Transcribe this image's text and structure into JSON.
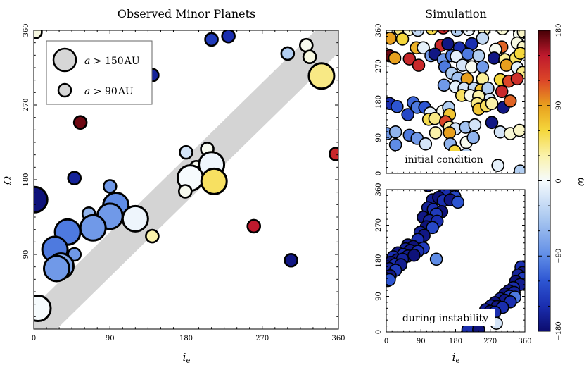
{
  "chart_data": [
    {
      "type": "scatter",
      "title": "Observed Minor Planets",
      "xlabel": "i",
      "xlabel_sub": "e",
      "ylabel": "Ω",
      "xlim": [
        0,
        360
      ],
      "ylim": [
        0,
        360
      ],
      "xticks": [
        0,
        90,
        180,
        270,
        360
      ],
      "yticks": [
        90,
        180,
        270,
        360
      ],
      "band": "diagonal Ω ≈ i_e",
      "legend": {
        "entries": [
          {
            "prefix": "a > ",
            "value": "150",
            "unit": "AU",
            "size": "large"
          },
          {
            "prefix": "a > ",
            "value": "90",
            "unit": "AU",
            "size": "small"
          }
        ]
      },
      "points": [
        {
          "x": 2,
          "y": 358,
          "w": 10,
          "size": "small"
        },
        {
          "x": 210,
          "y": 349,
          "w": -140,
          "size": "small"
        },
        {
          "x": 230,
          "y": 353,
          "w": -150,
          "size": "small"
        },
        {
          "x": 140,
          "y": 306,
          "w": -160,
          "size": "small"
        },
        {
          "x": 300,
          "y": 332,
          "w": -40,
          "size": "small"
        },
        {
          "x": 322,
          "y": 342,
          "w": 5,
          "size": "small"
        },
        {
          "x": 326,
          "y": 328,
          "w": 10,
          "size": "small"
        },
        {
          "x": 340,
          "y": 305,
          "w": 40,
          "size": "large"
        },
        {
          "x": 55,
          "y": 249,
          "w": 170,
          "size": "small"
        },
        {
          "x": 357,
          "y": 211,
          "w": 140,
          "size": "small"
        },
        {
          "x": 180,
          "y": 213,
          "w": -20,
          "size": "small"
        },
        {
          "x": 205,
          "y": 217,
          "w": 5,
          "size": "small"
        },
        {
          "x": 192,
          "y": 195,
          "w": 5,
          "size": "small"
        },
        {
          "x": 210,
          "y": 198,
          "w": -5,
          "size": "large"
        },
        {
          "x": 185,
          "y": 182,
          "w": 0,
          "size": "large"
        },
        {
          "x": 213,
          "y": 178,
          "w": 50,
          "size": "large"
        },
        {
          "x": 179,
          "y": 166,
          "w": 5,
          "size": "small"
        },
        {
          "x": 48,
          "y": 182,
          "w": -160,
          "size": "small"
        },
        {
          "x": 1,
          "y": 156,
          "w": -175,
          "size": "large"
        },
        {
          "x": 90,
          "y": 172,
          "w": -80,
          "size": "small"
        },
        {
          "x": 65,
          "y": 139,
          "w": -60,
          "size": "small"
        },
        {
          "x": 97,
          "y": 149,
          "w": -90,
          "size": "large"
        },
        {
          "x": 90,
          "y": 136,
          "w": -80,
          "size": "large"
        },
        {
          "x": 120,
          "y": 133,
          "w": -5,
          "size": "large"
        },
        {
          "x": 70,
          "y": 122,
          "w": -80,
          "size": "large"
        },
        {
          "x": 40,
          "y": 117,
          "w": -100,
          "size": "large"
        },
        {
          "x": 140,
          "y": 112,
          "w": 30,
          "size": "small"
        },
        {
          "x": 260,
          "y": 124,
          "w": 150,
          "size": "small"
        },
        {
          "x": 25,
          "y": 96,
          "w": -100,
          "size": "large"
        },
        {
          "x": 48,
          "y": 90,
          "w": -80,
          "size": "small"
        },
        {
          "x": 32,
          "y": 76,
          "w": -70,
          "size": "large"
        },
        {
          "x": 27,
          "y": 73,
          "w": -80,
          "size": "large"
        },
        {
          "x": 304,
          "y": 83,
          "w": -170,
          "size": "small"
        },
        {
          "x": 5,
          "y": 25,
          "w": 0,
          "size": "large"
        }
      ]
    },
    {
      "type": "scatter",
      "title": "Simulation",
      "annotation": "initial condition",
      "xlabel": "",
      "ylabel": "",
      "xlim": [
        0,
        360
      ],
      "ylim": [
        0,
        360
      ],
      "ticks": [
        0,
        90,
        180,
        270,
        360
      ],
      "points": [
        {
          "x": 12,
          "y": 366,
          "w": 5
        },
        {
          "x": 36,
          "y": 362,
          "w": 40
        },
        {
          "x": 58,
          "y": 362,
          "w": 15
        },
        {
          "x": 82,
          "y": 360,
          "w": -30
        },
        {
          "x": 118,
          "y": 364,
          "w": 55
        },
        {
          "x": 148,
          "y": 366,
          "w": 140
        },
        {
          "x": 184,
          "y": 360,
          "w": -40
        },
        {
          "x": 214,
          "y": 362,
          "w": -5
        },
        {
          "x": 254,
          "y": 362,
          "w": 20
        },
        {
          "x": 302,
          "y": 364,
          "w": 15
        },
        {
          "x": 346,
          "y": 350,
          "w": 5
        },
        {
          "x": 356,
          "y": 356,
          "w": 20
        },
        {
          "x": 10,
          "y": 340,
          "w": 90
        },
        {
          "x": 42,
          "y": 338,
          "w": 60
        },
        {
          "x": 78,
          "y": 316,
          "w": 80
        },
        {
          "x": 96,
          "y": 316,
          "w": -10
        },
        {
          "x": 142,
          "y": 322,
          "w": 140
        },
        {
          "x": 160,
          "y": 326,
          "w": -170
        },
        {
          "x": 190,
          "y": 316,
          "w": -150
        },
        {
          "x": 222,
          "y": 326,
          "w": -150
        },
        {
          "x": 250,
          "y": 340,
          "w": -30
        },
        {
          "x": 300,
          "y": 318,
          "w": 110
        },
        {
          "x": 284,
          "y": 312,
          "w": 5
        },
        {
          "x": 340,
          "y": 328,
          "w": 10
        },
        {
          "x": 356,
          "y": 318,
          "w": 20
        },
        {
          "x": 8,
          "y": 296,
          "w": 170
        },
        {
          "x": 22,
          "y": 290,
          "w": 90
        },
        {
          "x": 60,
          "y": 288,
          "w": 140
        },
        {
          "x": 116,
          "y": 296,
          "w": -80
        },
        {
          "x": 126,
          "y": 300,
          "w": -170
        },
        {
          "x": 148,
          "y": 286,
          "w": -80
        },
        {
          "x": 170,
          "y": 296,
          "w": -100
        },
        {
          "x": 182,
          "y": 294,
          "w": -10
        },
        {
          "x": 212,
          "y": 300,
          "w": -100
        },
        {
          "x": 240,
          "y": 296,
          "w": -40
        },
        {
          "x": 280,
          "y": 290,
          "w": -170
        },
        {
          "x": 308,
          "y": 286,
          "w": 35
        },
        {
          "x": 336,
          "y": 290,
          "w": 50
        },
        {
          "x": 348,
          "y": 302,
          "w": 60
        },
        {
          "x": 84,
          "y": 272,
          "w": 140
        },
        {
          "x": 152,
          "y": 268,
          "w": -100
        },
        {
          "x": 198,
          "y": 272,
          "w": -20
        },
        {
          "x": 222,
          "y": 268,
          "w": 5
        },
        {
          "x": 250,
          "y": 268,
          "w": -80
        },
        {
          "x": 312,
          "y": 272,
          "w": 90
        },
        {
          "x": 340,
          "y": 266,
          "w": -10
        },
        {
          "x": 354,
          "y": 254,
          "w": 40
        },
        {
          "x": 170,
          "y": 252,
          "w": -40
        },
        {
          "x": 186,
          "y": 240,
          "w": -50
        },
        {
          "x": 210,
          "y": 238,
          "w": 90
        },
        {
          "x": 250,
          "y": 238,
          "w": 35
        },
        {
          "x": 296,
          "y": 236,
          "w": 60
        },
        {
          "x": 318,
          "y": 232,
          "w": 120
        },
        {
          "x": 340,
          "y": 238,
          "w": 135
        },
        {
          "x": 150,
          "y": 222,
          "w": -80
        },
        {
          "x": 180,
          "y": 218,
          "w": -10
        },
        {
          "x": 202,
          "y": 214,
          "w": -20
        },
        {
          "x": 228,
          "y": 214,
          "w": -30
        },
        {
          "x": 246,
          "y": 210,
          "w": 70
        },
        {
          "x": 264,
          "y": 214,
          "w": -40
        },
        {
          "x": 300,
          "y": 206,
          "w": 140
        },
        {
          "x": 268,
          "y": 186,
          "w": -20
        },
        {
          "x": 196,
          "y": 196,
          "w": 50
        },
        {
          "x": 218,
          "y": 196,
          "w": 5
        },
        {
          "x": 240,
          "y": 194,
          "w": 30
        },
        {
          "x": 236,
          "y": 176,
          "w": 40
        },
        {
          "x": 240,
          "y": 162,
          "w": 70
        },
        {
          "x": 260,
          "y": 170,
          "w": 50
        },
        {
          "x": 274,
          "y": 176,
          "w": 30
        },
        {
          "x": 304,
          "y": 166,
          "w": -170
        },
        {
          "x": 322,
          "y": 182,
          "w": 110
        },
        {
          "x": 8,
          "y": 176,
          "w": -150
        },
        {
          "x": 28,
          "y": 168,
          "w": -120
        },
        {
          "x": 70,
          "y": 178,
          "w": -110
        },
        {
          "x": 80,
          "y": 166,
          "w": -100
        },
        {
          "x": 100,
          "y": 166,
          "w": -120
        },
        {
          "x": 114,
          "y": 152,
          "w": -10
        },
        {
          "x": 146,
          "y": 156,
          "w": 5
        },
        {
          "x": 162,
          "y": 166,
          "w": -40
        },
        {
          "x": 164,
          "y": 148,
          "w": 70
        },
        {
          "x": 56,
          "y": 148,
          "w": -130
        },
        {
          "x": 110,
          "y": 136,
          "w": 55
        },
        {
          "x": 126,
          "y": 138,
          "w": 40
        },
        {
          "x": 154,
          "y": 130,
          "w": 120
        },
        {
          "x": 164,
          "y": 116,
          "w": 30
        },
        {
          "x": 180,
          "y": 112,
          "w": -20
        },
        {
          "x": 164,
          "y": 102,
          "w": 90
        },
        {
          "x": 206,
          "y": 116,
          "w": -50
        },
        {
          "x": 230,
          "y": 122,
          "w": -20
        },
        {
          "x": 274,
          "y": 128,
          "w": -170
        },
        {
          "x": 2,
          "y": 100,
          "w": -80
        },
        {
          "x": 24,
          "y": 104,
          "w": -60
        },
        {
          "x": 60,
          "y": 96,
          "w": -100
        },
        {
          "x": 80,
          "y": 88,
          "w": -80
        },
        {
          "x": 128,
          "y": 102,
          "w": 30
        },
        {
          "x": 102,
          "y": 74,
          "w": -20
        },
        {
          "x": 166,
          "y": 74,
          "w": -60
        },
        {
          "x": 208,
          "y": 78,
          "w": 5
        },
        {
          "x": 226,
          "y": 90,
          "w": -60
        },
        {
          "x": 296,
          "y": 104,
          "w": -20
        },
        {
          "x": 322,
          "y": 100,
          "w": 15
        },
        {
          "x": 346,
          "y": 108,
          "w": 20
        },
        {
          "x": 24,
          "y": 72,
          "w": -90
        },
        {
          "x": 140,
          "y": 40,
          "w": 90
        },
        {
          "x": 178,
          "y": 38,
          "w": -100
        },
        {
          "x": 178,
          "y": 56,
          "w": 60
        },
        {
          "x": 208,
          "y": 48,
          "w": -40
        },
        {
          "x": 290,
          "y": 20,
          "w": -10
        },
        {
          "x": 348,
          "y": 6,
          "w": -40
        }
      ]
    },
    {
      "type": "scatter",
      "title": "",
      "annotation": "during instability",
      "xlabel": "i",
      "xlabel_sub": "e",
      "ylabel": "",
      "xlim": [
        0,
        360
      ],
      "ylim": [
        0,
        360
      ],
      "ticks": [
        0,
        90,
        180,
        270,
        360
      ],
      "points": [
        {
          "x": 108,
          "y": 370,
          "w": -170
        },
        {
          "x": 150,
          "y": 366,
          "w": -175
        },
        {
          "x": 174,
          "y": 364,
          "w": -160
        },
        {
          "x": 154,
          "y": 350,
          "w": -150
        },
        {
          "x": 178,
          "y": 342,
          "w": -130
        },
        {
          "x": 120,
          "y": 334,
          "w": -165
        },
        {
          "x": 136,
          "y": 340,
          "w": -175
        },
        {
          "x": 148,
          "y": 332,
          "w": -150
        },
        {
          "x": 166,
          "y": 334,
          "w": -170
        },
        {
          "x": 186,
          "y": 328,
          "w": -120
        },
        {
          "x": 108,
          "y": 314,
          "w": -160
        },
        {
          "x": 122,
          "y": 310,
          "w": -150
        },
        {
          "x": 144,
          "y": 304,
          "w": -175
        },
        {
          "x": 130,
          "y": 298,
          "w": -140
        },
        {
          "x": 96,
          "y": 290,
          "w": -170
        },
        {
          "x": 112,
          "y": 282,
          "w": -160
        },
        {
          "x": 132,
          "y": 280,
          "w": -150
        },
        {
          "x": 104,
          "y": 266,
          "w": -175
        },
        {
          "x": 120,
          "y": 264,
          "w": -130
        },
        {
          "x": 88,
          "y": 252,
          "w": -160
        },
        {
          "x": 98,
          "y": 244,
          "w": -170
        },
        {
          "x": 82,
          "y": 234,
          "w": -150
        },
        {
          "x": 56,
          "y": 220,
          "w": -165
        },
        {
          "x": 70,
          "y": 216,
          "w": -175
        },
        {
          "x": 96,
          "y": 212,
          "w": -140
        },
        {
          "x": 50,
          "y": 210,
          "w": -160
        },
        {
          "x": 62,
          "y": 206,
          "w": -170
        },
        {
          "x": 82,
          "y": 204,
          "w": -150
        },
        {
          "x": 30,
          "y": 200,
          "w": -170
        },
        {
          "x": 44,
          "y": 196,
          "w": -155
        },
        {
          "x": 56,
          "y": 192,
          "w": -165
        },
        {
          "x": 72,
          "y": 194,
          "w": -175
        },
        {
          "x": 18,
          "y": 190,
          "w": -150
        },
        {
          "x": 28,
          "y": 182,
          "w": -170
        },
        {
          "x": 42,
          "y": 184,
          "w": -160
        },
        {
          "x": 12,
          "y": 176,
          "w": -175
        },
        {
          "x": 22,
          "y": 170,
          "w": -150
        },
        {
          "x": 38,
          "y": 170,
          "w": -165
        },
        {
          "x": 8,
          "y": 160,
          "w": -160
        },
        {
          "x": 24,
          "y": 156,
          "w": -140
        },
        {
          "x": 10,
          "y": 142,
          "w": -170
        },
        {
          "x": 4,
          "y": 130,
          "w": -130
        },
        {
          "x": 130,
          "y": 184,
          "w": -90
        },
        {
          "x": 8,
          "y": 132,
          "w": -120
        },
        {
          "x": 350,
          "y": 164,
          "w": -150
        },
        {
          "x": 354,
          "y": 150,
          "w": -170
        },
        {
          "x": 342,
          "y": 144,
          "w": -160
        },
        {
          "x": 356,
          "y": 136,
          "w": -140
        },
        {
          "x": 336,
          "y": 128,
          "w": -175
        },
        {
          "x": 348,
          "y": 120,
          "w": -165
        },
        {
          "x": 330,
          "y": 112,
          "w": -150
        },
        {
          "x": 318,
          "y": 104,
          "w": -170
        },
        {
          "x": 332,
          "y": 100,
          "w": -160
        },
        {
          "x": 308,
          "y": 96,
          "w": -175
        },
        {
          "x": 320,
          "y": 90,
          "w": -140
        },
        {
          "x": 334,
          "y": 88,
          "w": -100
        },
        {
          "x": 296,
          "y": 84,
          "w": -160
        },
        {
          "x": 308,
          "y": 80,
          "w": -170
        },
        {
          "x": 322,
          "y": 76,
          "w": -150
        },
        {
          "x": 282,
          "y": 74,
          "w": -175
        },
        {
          "x": 272,
          "y": 66,
          "w": -160
        },
        {
          "x": 288,
          "y": 64,
          "w": -170
        },
        {
          "x": 302,
          "y": 62,
          "w": -150
        },
        {
          "x": 258,
          "y": 56,
          "w": -165
        },
        {
          "x": 270,
          "y": 52,
          "w": -175
        },
        {
          "x": 282,
          "y": 50,
          "w": -150
        },
        {
          "x": 266,
          "y": 40,
          "w": -170
        },
        {
          "x": 250,
          "y": 30,
          "w": -160
        },
        {
          "x": 238,
          "y": 20,
          "w": -175
        },
        {
          "x": 286,
          "y": 22,
          "w": -20
        },
        {
          "x": 226,
          "y": 10,
          "w": -170
        },
        {
          "x": 212,
          "y": 6,
          "w": -150
        },
        {
          "x": 240,
          "y": 6,
          "w": -175
        }
      ]
    }
  ],
  "colorbar": {
    "label": "ω",
    "min": -180,
    "max": 180,
    "ticks": [
      -180,
      -90,
      0,
      90,
      180
    ]
  }
}
